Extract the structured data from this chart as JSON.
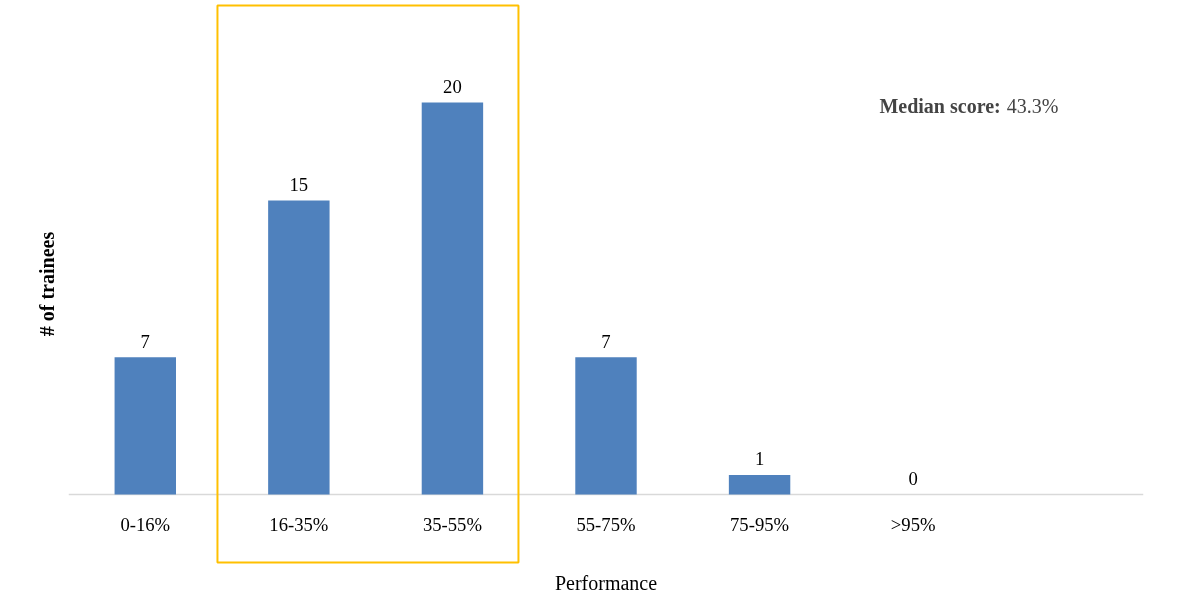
{
  "chart_data": {
    "type": "bar",
    "categories": [
      "0-16%",
      "16-35%",
      "35-55%",
      "55-75%",
      "75-95%",
      ">95%",
      null
    ],
    "values": [
      7,
      15,
      20,
      7,
      1,
      0,
      null
    ],
    "color": "#4f81bd",
    "data_labels": true,
    "xlabel": "Performance",
    "ylabel": "# of trainees",
    "annotations": [
      "Median score: 43.3%"
    ],
    "grid": false
  }
}
